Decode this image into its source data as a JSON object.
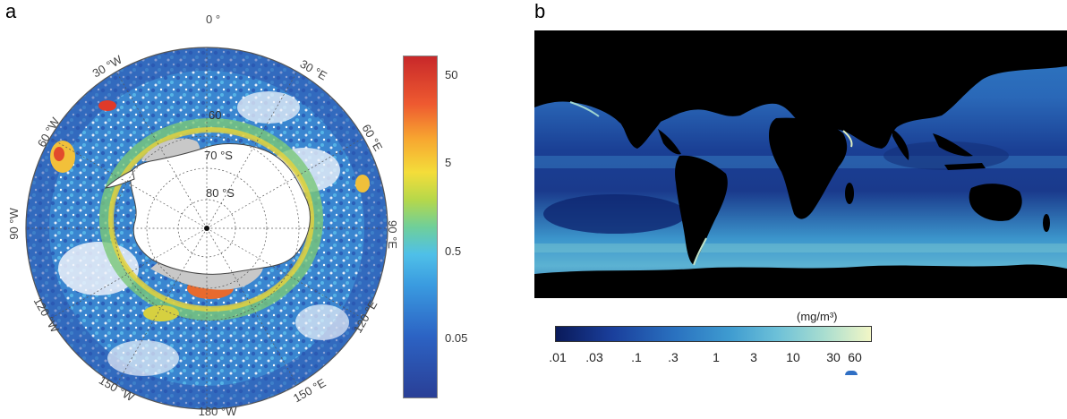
{
  "panels": {
    "a": {
      "letter": "a",
      "longitude_labels": [
        "0 °",
        "30 °E",
        "60 °E",
        "90 °E",
        "120 °E",
        "150 °E",
        "180 °W",
        "150 °W",
        "120 °W",
        "90 °W",
        "60 °W",
        "30 °W"
      ],
      "latitude_labels": [
        "60",
        "70 °S",
        "80 °S"
      ],
      "colorbar_ticks": [
        "50",
        "5",
        "0.5",
        "0.05"
      ],
      "colors": {
        "land": "#ffffff",
        "ice_shelf": "#c8c8c8",
        "ocean_low": "#2a4fa8",
        "ocean_mid": "#3aa0dc",
        "ocean_high": "#c8282a"
      }
    },
    "b": {
      "letter": "b",
      "unit_label": "(mg/m³)",
      "colorbar_ticks": [
        ".01",
        ".03",
        ".1",
        ".3",
        "1",
        "3",
        "10",
        "30",
        "60"
      ],
      "colors": {
        "land": "#000000",
        "ocean_low": "#0a1a5a",
        "ocean_mid": "#2a72c0",
        "ocean_high": "#f2f6c6"
      }
    }
  }
}
